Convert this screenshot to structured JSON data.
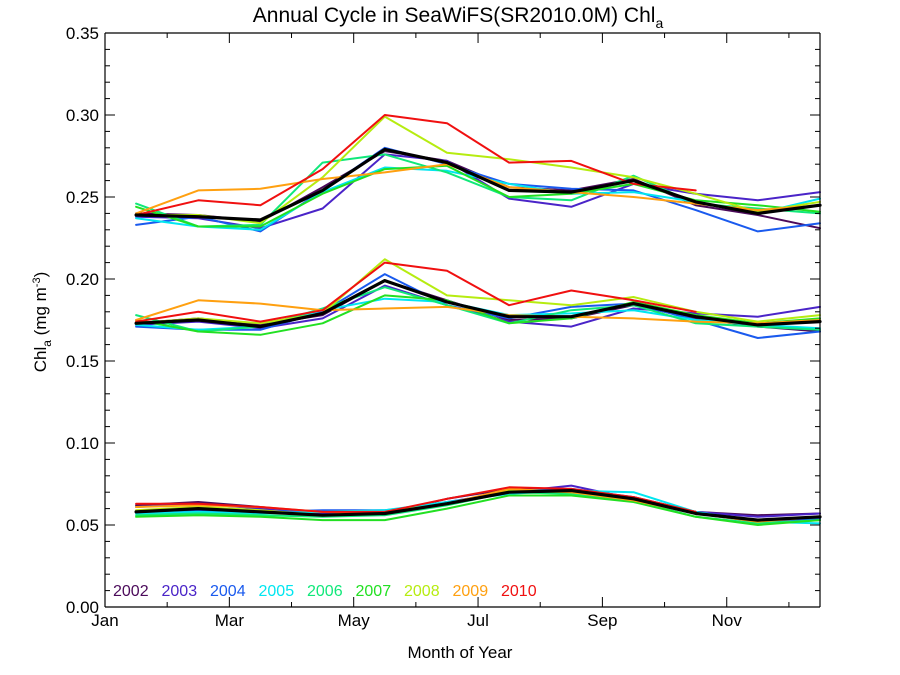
{
  "chart_data": {
    "type": "line",
    "title": "Annual Cycle in SeaWiFS(SR2010.0M) Chl",
    "title_subscript": "a",
    "xlabel": "Month of Year",
    "ylabel": {
      "base": "Chl",
      "subscript": "a",
      "units_prefix": " (mg m",
      "units_superscript": "-3",
      "units_suffix": ")"
    },
    "ylim": [
      0.0,
      0.35
    ],
    "xlim": [
      1,
      12.5
    ],
    "x_ticks": [
      {
        "value": 1,
        "label": "Jan"
      },
      {
        "value": 3,
        "label": "Mar"
      },
      {
        "value": 5,
        "label": "May"
      },
      {
        "value": 7,
        "label": "Jul"
      },
      {
        "value": 9,
        "label": "Sep"
      },
      {
        "value": 11,
        "label": "Nov"
      }
    ],
    "y_ticks": [
      {
        "value": 0.0,
        "label": "0.00"
      },
      {
        "value": 0.05,
        "label": "0.05"
      },
      {
        "value": 0.1,
        "label": "0.10"
      },
      {
        "value": 0.15,
        "label": "0.15"
      },
      {
        "value": 0.2,
        "label": "0.20"
      },
      {
        "value": 0.25,
        "label": "0.25"
      },
      {
        "value": 0.3,
        "label": "0.30"
      },
      {
        "value": 0.35,
        "label": "0.35"
      }
    ],
    "grid": false,
    "legend_position": "bottom-left",
    "x": [
      1.5,
      2.5,
      3.5,
      4.5,
      5.5,
      6.5,
      7.5,
      8.5,
      9.5,
      10.5,
      11.5,
      12.5
    ],
    "series": [
      {
        "name": "2002",
        "color": "#4b0a5a",
        "groups": [
          [
            0.24,
            0.239,
            0.235,
            0.256,
            0.278,
            0.272,
            0.256,
            0.254,
            0.261,
            0.245,
            0.239,
            0.231
          ],
          [
            0.173,
            0.176,
            0.172,
            0.178,
            0.199,
            0.187,
            0.175,
            0.176,
            0.184,
            0.176,
            0.171,
            0.168
          ],
          [
            0.062,
            0.064,
            0.061,
            0.057,
            0.057,
            0.066,
            0.072,
            0.071,
            0.067,
            0.058,
            0.056,
            0.057
          ]
        ]
      },
      {
        "name": "2003",
        "color": "#4a24c8",
        "groups": [
          [
            0.238,
            0.237,
            0.231,
            0.243,
            0.276,
            0.272,
            0.249,
            0.244,
            0.258,
            0.252,
            0.248,
            0.253
          ],
          [
            0.172,
            0.174,
            0.17,
            0.176,
            0.196,
            0.184,
            0.174,
            0.171,
            0.182,
            0.179,
            0.177,
            0.183
          ],
          [
            0.061,
            0.063,
            0.06,
            0.057,
            0.058,
            0.064,
            0.07,
            0.074,
            0.066,
            0.058,
            0.055,
            0.057
          ]
        ]
      },
      {
        "name": "2004",
        "color": "#1a5aee",
        "groups": [
          [
            0.233,
            0.238,
            0.229,
            0.254,
            0.28,
            0.27,
            0.258,
            0.255,
            0.254,
            0.242,
            0.229,
            0.234
          ],
          [
            0.171,
            0.169,
            0.169,
            0.18,
            0.203,
            0.184,
            0.176,
            0.183,
            0.185,
            0.175,
            0.164,
            0.168
          ],
          [
            0.058,
            0.059,
            0.058,
            0.059,
            0.059,
            0.063,
            0.071,
            0.072,
            0.067,
            0.057,
            0.052,
            0.054
          ]
        ]
      },
      {
        "name": "2005",
        "color": "#00e6f0",
        "groups": [
          [
            0.237,
            0.232,
            0.23,
            0.253,
            0.268,
            0.266,
            0.258,
            0.252,
            0.253,
            0.247,
            0.24,
            0.249
          ],
          [
            0.172,
            0.169,
            0.171,
            0.181,
            0.188,
            0.186,
            0.178,
            0.179,
            0.181,
            0.175,
            0.172,
            0.17
          ],
          [
            0.057,
            0.058,
            0.057,
            0.058,
            0.059,
            0.064,
            0.069,
            0.071,
            0.07,
            0.058,
            0.052,
            0.051
          ]
        ]
      },
      {
        "name": "2006",
        "color": "#10e87a",
        "groups": [
          [
            0.246,
            0.232,
            0.233,
            0.271,
            0.276,
            0.265,
            0.25,
            0.248,
            0.263,
            0.246,
            0.243,
            0.24
          ],
          [
            0.178,
            0.168,
            0.171,
            0.182,
            0.195,
            0.184,
            0.173,
            0.181,
            0.184,
            0.173,
            0.171,
            0.169
          ],
          [
            0.056,
            0.057,
            0.056,
            0.055,
            0.056,
            0.062,
            0.07,
            0.069,
            0.065,
            0.055,
            0.051,
            0.053
          ]
        ]
      },
      {
        "name": "2007",
        "color": "#22e022",
        "groups": [
          [
            0.244,
            0.232,
            0.232,
            0.252,
            0.267,
            0.269,
            0.25,
            0.252,
            0.258,
            0.248,
            0.245,
            0.241
          ],
          [
            0.175,
            0.168,
            0.166,
            0.173,
            0.19,
            0.187,
            0.173,
            0.176,
            0.186,
            0.178,
            0.173,
            0.176
          ],
          [
            0.055,
            0.056,
            0.055,
            0.053,
            0.053,
            0.06,
            0.068,
            0.068,
            0.064,
            0.055,
            0.05,
            0.053
          ]
        ]
      },
      {
        "name": "2008",
        "color": "#b6ec10",
        "groups": [
          [
            0.239,
            0.239,
            0.234,
            0.262,
            0.299,
            0.277,
            0.273,
            0.268,
            0.262,
            0.252,
            0.241,
            0.247
          ],
          [
            0.173,
            0.176,
            0.173,
            0.179,
            0.212,
            0.19,
            0.187,
            0.184,
            0.189,
            0.18,
            0.174,
            0.178
          ],
          [
            0.059,
            0.061,
            0.059,
            0.056,
            0.058,
            0.063,
            0.071,
            0.07,
            0.066,
            0.057,
            0.053,
            0.055
          ]
        ]
      },
      {
        "name": "2009",
        "color": "#ffa010",
        "groups": [
          [
            0.24,
            0.254,
            0.255,
            0.261,
            0.265,
            0.27,
            0.256,
            0.253,
            0.25,
            0.246,
            0.242,
            0.245
          ],
          [
            0.175,
            0.187,
            0.185,
            0.181,
            0.182,
            0.183,
            0.178,
            0.177,
            0.176,
            0.174,
            0.173,
            0.175
          ],
          [
            0.061,
            0.062,
            0.061,
            0.058,
            0.057,
            0.063,
            0.072,
            0.07,
            0.065,
            0.057,
            0.052,
            0.055
          ]
        ]
      },
      {
        "name": "2010",
        "color": "#f01010",
        "groups": [
          [
            0.239,
            0.248,
            0.245,
            0.267,
            0.3,
            0.295,
            0.271,
            0.272,
            0.258,
            0.254,
            null,
            null
          ],
          [
            0.174,
            0.18,
            0.174,
            0.181,
            0.21,
            0.205,
            0.184,
            0.193,
            0.187,
            0.18,
            null,
            null
          ],
          [
            0.063,
            0.063,
            0.061,
            0.058,
            0.058,
            0.066,
            0.073,
            0.072,
            0.067,
            0.058,
            null,
            null
          ]
        ]
      }
    ],
    "mean_series": {
      "color": "#000000",
      "groups": [
        [
          0.239,
          0.238,
          0.236,
          0.254,
          0.279,
          0.271,
          0.254,
          0.253,
          0.26,
          0.247,
          0.24,
          0.245
        ],
        [
          0.173,
          0.175,
          0.171,
          0.179,
          0.199,
          0.186,
          0.177,
          0.177,
          0.185,
          0.177,
          0.172,
          0.174
        ],
        [
          0.058,
          0.06,
          0.058,
          0.056,
          0.057,
          0.063,
          0.07,
          0.071,
          0.066,
          0.057,
          0.053,
          0.055
        ]
      ]
    }
  }
}
